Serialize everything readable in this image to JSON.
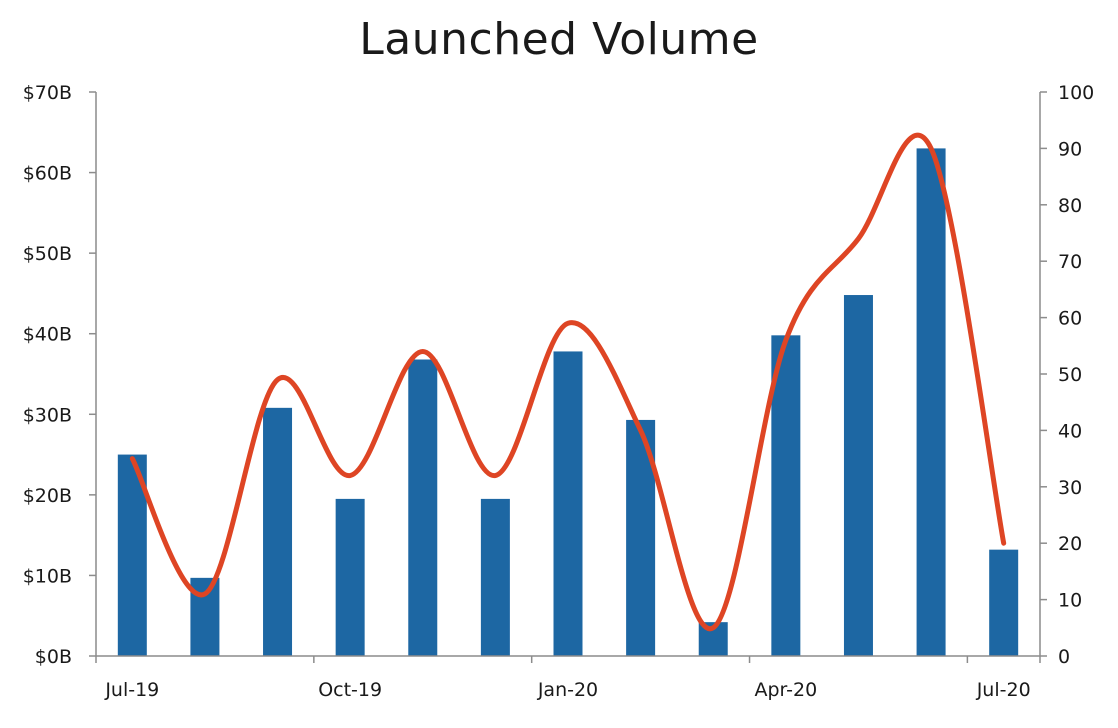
{
  "chart_data": {
    "type": "bar",
    "title": "Launched Volume",
    "categories": [
      "Jul-19",
      "Aug-19",
      "Sep-19",
      "Oct-19",
      "Nov-19",
      "Dec-19",
      "Jan-20",
      "Feb-20",
      "Mar-20",
      "Apr-20",
      "May-20",
      "Jun-20",
      "Jul-20"
    ],
    "x_tick_labels": [
      "Jul-19",
      "Oct-19",
      "Jan-20",
      "Apr-20",
      "Jul-20"
    ],
    "series": [
      {
        "type": "bar",
        "axis": "left",
        "color": "#1d67a3",
        "values": [
          25,
          9.7,
          30.8,
          19.5,
          36.8,
          19.5,
          37.8,
          29.3,
          4.2,
          39.8,
          44.8,
          63,
          13.2
        ]
      },
      {
        "type": "line",
        "axis": "right",
        "smooth": true,
        "color": "#de4524",
        "values": [
          35,
          11,
          49,
          32,
          54,
          32,
          59,
          40,
          5,
          56,
          74,
          90,
          20
        ]
      }
    ],
    "y_left": {
      "min": 0,
      "max": 70,
      "step": 10,
      "tick_labels": [
        "$0B",
        "$10B",
        "$20B",
        "$30B",
        "$40B",
        "$50B",
        "$60B",
        "$70B"
      ]
    },
    "y_right": {
      "min": 0,
      "max": 100,
      "step": 10,
      "tick_labels": [
        "0",
        "10",
        "20",
        "30",
        "40",
        "50",
        "60",
        "70",
        "80",
        "90",
        "100"
      ]
    },
    "grid": false,
    "legend": "none"
  }
}
